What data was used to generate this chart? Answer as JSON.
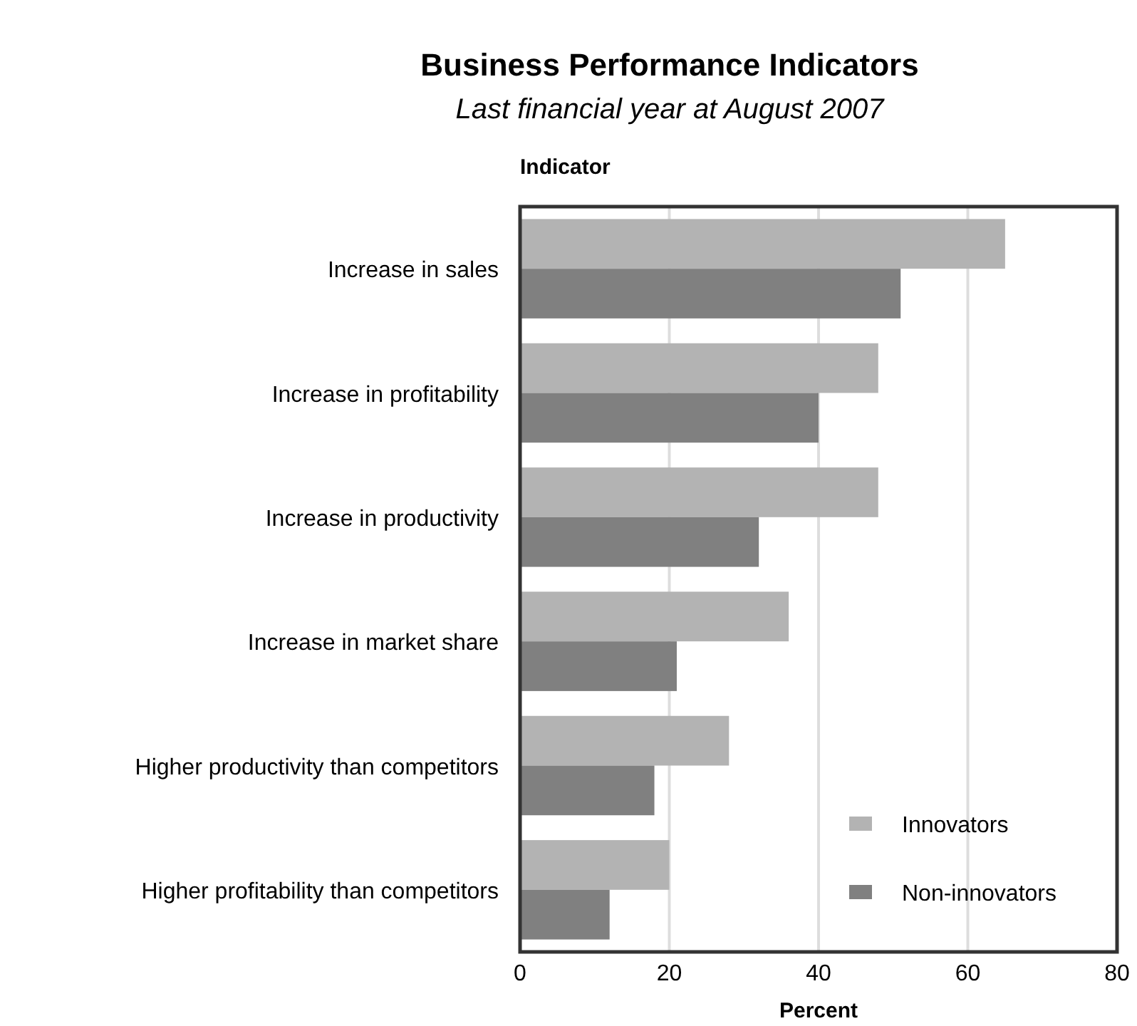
{
  "chart_data": {
    "type": "bar",
    "orientation": "horizontal",
    "title": "Business Performance Indicators",
    "subtitle": "Last financial year at August 2007",
    "ylabel": "Indicator",
    "xlabel": "Percent",
    "categories": [
      "Increase in sales",
      "Increase in profitability",
      "Increase in productivity",
      "Increase in market share",
      "Higher productivity than competitors",
      "Higher profitability than competitors"
    ],
    "series": [
      {
        "name": "Innovators",
        "color": "#b3b3b3",
        "values": [
          65,
          48,
          48,
          36,
          28,
          20
        ]
      },
      {
        "name": "Non-innovators",
        "color": "#808080",
        "values": [
          51,
          40,
          32,
          21,
          18,
          12
        ]
      }
    ],
    "xlim": [
      0,
      80
    ],
    "xticks": [
      0,
      20,
      40,
      60,
      80
    ],
    "grid": "x",
    "legend": "bottom right"
  }
}
